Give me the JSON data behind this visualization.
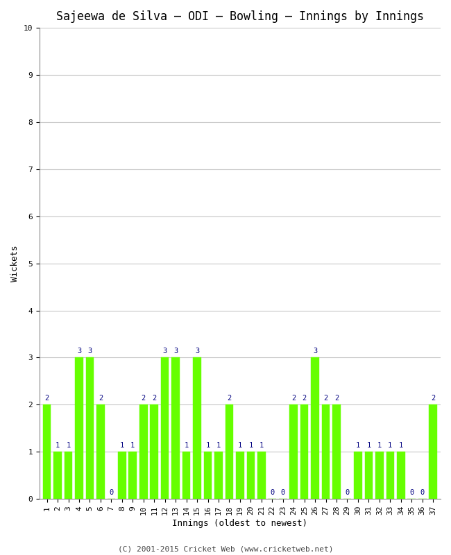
{
  "title": "Sajeewa de Silva – ODI – Bowling – Innings by Innings",
  "xlabel": "Innings (oldest to newest)",
  "ylabel": "Wickets",
  "bar_color": "#66ff00",
  "bar_edge_color": "#66ff00",
  "label_color": "#000080",
  "background_color": "#ffffff",
  "grid_color": "#c8c8c8",
  "ylim": [
    0,
    10
  ],
  "yticks": [
    0,
    1,
    2,
    3,
    4,
    5,
    6,
    7,
    8,
    9,
    10
  ],
  "innings": [
    1,
    2,
    3,
    4,
    5,
    6,
    7,
    8,
    9,
    10,
    11,
    12,
    13,
    14,
    15,
    16,
    17,
    18,
    19,
    20,
    21,
    22,
    23,
    24,
    25,
    26,
    27,
    28,
    29,
    30,
    31,
    32,
    33,
    34,
    35,
    36,
    37
  ],
  "wickets": [
    2,
    1,
    1,
    3,
    3,
    2,
    0,
    1,
    1,
    2,
    2,
    3,
    3,
    1,
    3,
    1,
    1,
    2,
    1,
    1,
    1,
    0,
    0,
    2,
    2,
    3,
    2,
    2,
    0,
    1,
    1,
    1,
    1,
    1,
    0,
    0,
    2
  ],
  "footer": "(C) 2001-2015 Cricket Web (www.cricketweb.net)",
  "title_fontsize": 12,
  "axis_fontsize": 9,
  "tick_fontsize": 8,
  "label_fontsize": 7.5,
  "footer_fontsize": 8
}
